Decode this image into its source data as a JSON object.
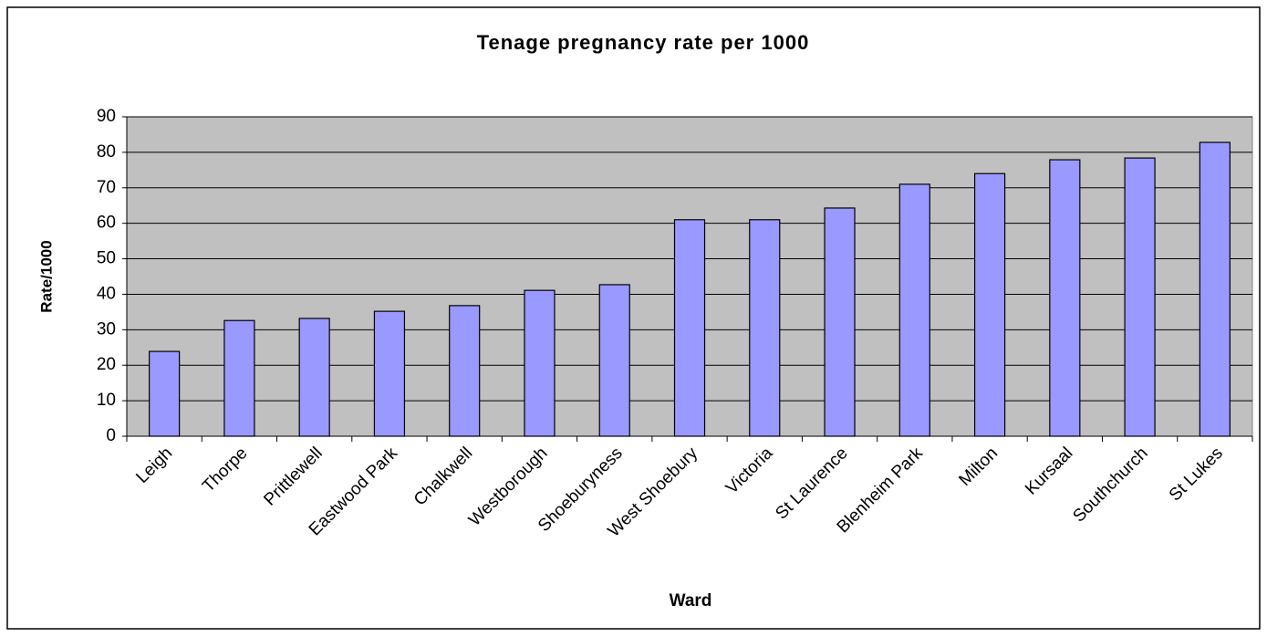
{
  "chart_data": {
    "type": "bar",
    "title": "Tenage pregnancy rate per 1000",
    "x_label": "Ward",
    "y_label": "Rate/1000",
    "categories": [
      "Leigh",
      "Thorpe",
      "Prittlewell",
      "Eastwood Park",
      "Chalkwell",
      "Westborough",
      "Shoeburyness",
      "West Shoebury",
      "Victoria",
      "St Laurence",
      "Blenheim Park",
      "Milton",
      "Kursaal",
      "Southchurch",
      "St Lukes"
    ],
    "values": [
      23.9,
      32.6,
      33.2,
      35.2,
      36.8,
      41.1,
      42.7,
      61,
      61,
      64.3,
      71,
      74,
      77.9,
      78.4,
      82.8
    ],
    "color": "#9999ff",
    "ylim": [
      0,
      90
    ],
    "yticks": [
      0,
      10,
      20,
      30,
      40,
      50,
      60,
      70,
      80,
      90
    ],
    "grid": true
  }
}
